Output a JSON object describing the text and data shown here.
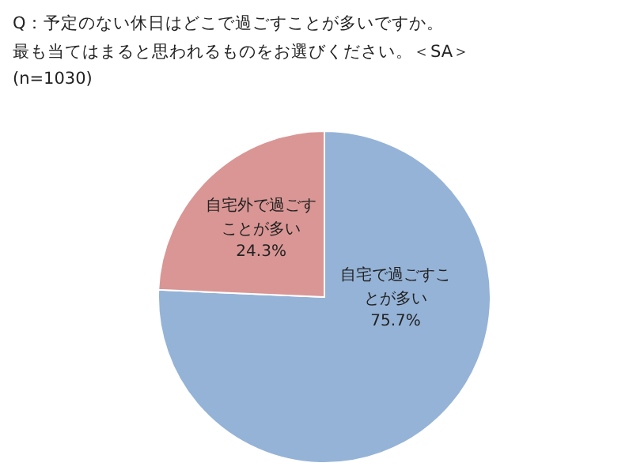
{
  "chart_data": {
    "type": "pie",
    "title": "Q：予定のない休日はどこで過ごすことが多いですか。",
    "subtitle": "最も当てはまると思われるものをお選びください。＜SA＞",
    "annotations": [
      "(n=1030)"
    ],
    "categories": [
      "自宅で過ごすことが多い",
      "自宅外で過ごすことが多い"
    ],
    "values": [
      75.7,
      24.3
    ],
    "value_labels": [
      "75.7%",
      "24.3%"
    ],
    "colors": [
      "#95b3d7",
      "#d99694"
    ]
  }
}
